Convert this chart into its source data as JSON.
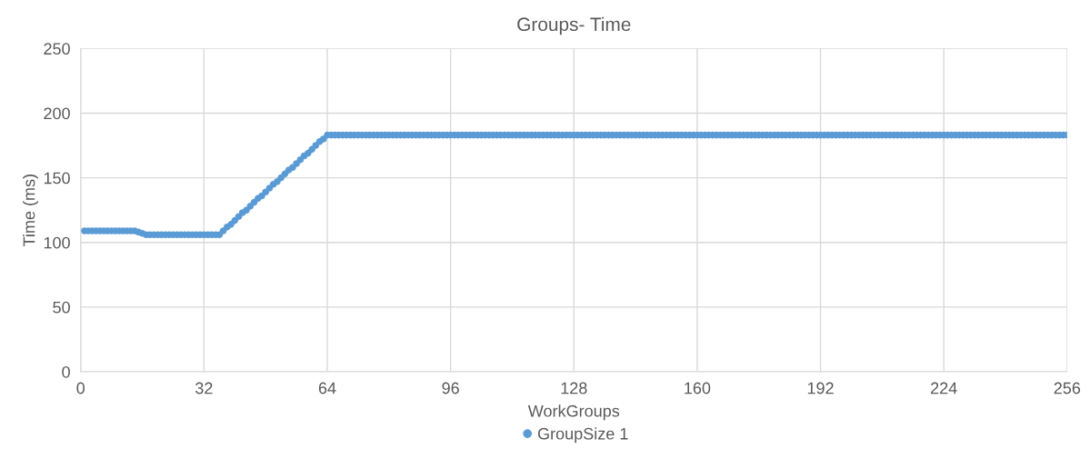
{
  "chart_data": {
    "type": "scatter",
    "title": "Groups- Time",
    "xlabel": "WorkGroups",
    "ylabel": "Time (ms)",
    "xlim": [
      0,
      256
    ],
    "xticks": [
      0,
      32,
      64,
      96,
      128,
      160,
      192,
      224,
      256
    ],
    "ylim": [
      0,
      250
    ],
    "yticks": [
      0,
      50,
      100,
      150,
      200,
      250
    ],
    "grid": true,
    "legend": "bottom",
    "marker": "circle",
    "x": [
      1,
      2,
      3,
      4,
      5,
      6,
      7,
      8,
      9,
      10,
      11,
      12,
      13,
      14,
      15,
      16,
      17,
      18,
      19,
      20,
      21,
      22,
      23,
      24,
      25,
      26,
      27,
      28,
      29,
      30,
      31,
      32,
      33,
      34,
      35,
      36,
      37,
      38,
      39,
      40,
      41,
      42,
      43,
      44,
      45,
      46,
      47,
      48,
      49,
      50,
      51,
      52,
      53,
      54,
      55,
      56,
      57,
      58,
      59,
      60,
      61,
      62,
      63,
      64,
      65,
      66,
      67,
      68,
      69,
      70,
      71,
      72,
      73,
      74,
      75,
      76,
      77,
      78,
      79,
      80,
      81,
      82,
      83,
      84,
      85,
      86,
      87,
      88,
      89,
      90,
      91,
      92,
      93,
      94,
      95,
      96,
      97,
      98,
      99,
      100,
      101,
      102,
      103,
      104,
      105,
      106,
      107,
      108,
      109,
      110,
      111,
      112,
      113,
      114,
      115,
      116,
      117,
      118,
      119,
      120,
      121,
      122,
      123,
      124,
      125,
      126,
      127,
      128,
      129,
      130,
      131,
      132,
      133,
      134,
      135,
      136,
      137,
      138,
      139,
      140,
      141,
      142,
      143,
      144,
      145,
      146,
      147,
      148,
      149,
      150,
      151,
      152,
      153,
      154,
      155,
      156,
      157,
      158,
      159,
      160,
      161,
      162,
      163,
      164,
      165,
      166,
      167,
      168,
      169,
      170,
      171,
      172,
      173,
      174,
      175,
      176,
      177,
      178,
      179,
      180,
      181,
      182,
      183,
      184,
      185,
      186,
      187,
      188,
      189,
      190,
      191,
      192,
      193,
      194,
      195,
      196,
      197,
      198,
      199,
      200,
      201,
      202,
      203,
      204,
      205,
      206,
      207,
      208,
      209,
      210,
      211,
      212,
      213,
      214,
      215,
      216,
      217,
      218,
      219,
      220,
      221,
      222,
      223,
      224,
      225,
      226,
      227,
      228,
      229,
      230,
      231,
      232,
      233,
      234,
      235,
      236,
      237,
      238,
      239,
      240,
      241,
      242,
      243,
      244,
      245,
      246,
      247,
      248,
      249,
      250,
      251,
      252,
      253,
      254,
      255,
      256
    ],
    "series": [
      {
        "name": "GroupSize 1",
        "color": "#5b9bd5",
        "values": [
          109,
          109,
          109,
          109,
          109,
          109,
          109,
          109,
          109,
          109,
          109,
          109,
          109,
          109,
          108,
          107,
          106,
          106,
          106,
          106,
          106,
          106,
          106,
          106,
          106,
          106,
          106,
          106,
          106,
          106,
          106,
          106,
          106,
          106,
          106,
          106,
          109,
          112,
          114,
          117,
          120,
          123,
          125,
          128,
          131,
          134,
          136,
          139,
          142,
          145,
          147,
          150,
          153,
          156,
          158,
          161,
          164,
          167,
          169,
          172,
          175,
          178,
          180,
          183,
          183,
          183,
          183,
          183,
          183,
          183,
          183,
          183,
          183,
          183,
          183,
          183,
          183,
          183,
          183,
          183,
          183,
          183,
          183,
          183,
          183,
          183,
          183,
          183,
          183,
          183,
          183,
          183,
          183,
          183,
          183,
          183,
          183,
          183,
          183,
          183,
          183,
          183,
          183,
          183,
          183,
          183,
          183,
          183,
          183,
          183,
          183,
          183,
          183,
          183,
          183,
          183,
          183,
          183,
          183,
          183,
          183,
          183,
          183,
          183,
          183,
          183,
          183,
          183,
          183,
          183,
          183,
          183,
          183,
          183,
          183,
          183,
          183,
          183,
          183,
          183,
          183,
          183,
          183,
          183,
          183,
          183,
          183,
          183,
          183,
          183,
          183,
          183,
          183,
          183,
          183,
          183,
          183,
          183,
          183,
          183,
          183,
          183,
          183,
          183,
          183,
          183,
          183,
          183,
          183,
          183,
          183,
          183,
          183,
          183,
          183,
          183,
          183,
          183,
          183,
          183,
          183,
          183,
          183,
          183,
          183,
          183,
          183,
          183,
          183,
          183,
          183,
          183,
          183,
          183,
          183,
          183,
          183,
          183,
          183,
          183,
          183,
          183,
          183,
          183,
          183,
          183,
          183,
          183,
          183,
          183,
          183,
          183,
          183,
          183,
          183,
          183,
          183,
          183,
          183,
          183,
          183,
          183,
          183,
          183,
          183,
          183,
          183,
          183,
          183,
          183,
          183,
          183,
          183,
          183,
          183,
          183,
          183,
          183,
          183,
          183,
          183,
          183,
          183,
          183,
          183,
          183,
          183,
          183,
          183,
          183,
          183,
          183,
          183,
          183,
          183,
          183
        ]
      }
    ]
  }
}
